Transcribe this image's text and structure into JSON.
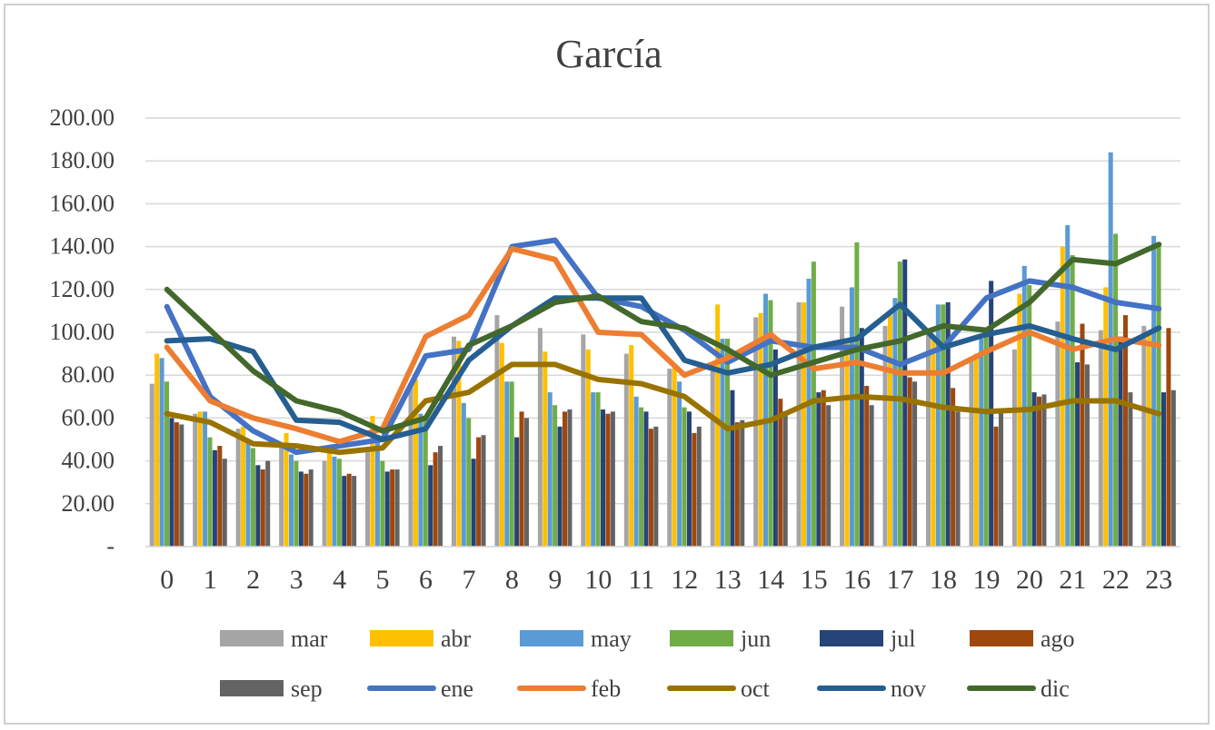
{
  "chart_data": {
    "type": "bar",
    "title": "García",
    "xlabel": "",
    "ylabel": "",
    "ylim": [
      0,
      200
    ],
    "yticks": [
      0,
      20,
      40,
      60,
      80,
      100,
      120,
      140,
      160,
      180,
      200
    ],
    "ytick_labels": [
      "-",
      "20.00",
      "40.00",
      "60.00",
      "80.00",
      "100.00",
      "120.00",
      "140.00",
      "160.00",
      "180.00",
      "200.00"
    ],
    "categories": [
      "0",
      "1",
      "2",
      "3",
      "4",
      "5",
      "6",
      "7",
      "8",
      "9",
      "10",
      "11",
      "12",
      "13",
      "14",
      "15",
      "16",
      "17",
      "18",
      "19",
      "20",
      "21",
      "22",
      "23"
    ],
    "legend_position": "bottom",
    "grid": true,
    "bar_series": [
      {
        "name": "mar",
        "color": "#a5a5a5",
        "values": [
          76,
          62,
          55,
          48,
          40,
          44,
          75,
          98,
          108,
          102,
          99,
          90,
          83,
          82,
          107,
          114,
          112,
          103,
          99,
          88,
          92,
          105,
          101,
          103
        ]
      },
      {
        "name": "abr",
        "color": "#ffc000",
        "values": [
          90,
          63,
          56,
          53,
          44,
          61,
          78,
          96,
          95,
          91,
          92,
          94,
          85,
          113,
          109,
          114,
          97,
          108,
          98,
          90,
          118,
          140,
          121,
          99
        ]
      },
      {
        "name": "may",
        "color": "#5b9bd5",
        "values": [
          88,
          63,
          49,
          43,
          42,
          52,
          62,
          67,
          77,
          72,
          72,
          70,
          77,
          97,
          118,
          125,
          121,
          116,
          113,
          97,
          131,
          150,
          184,
          145
        ]
      },
      {
        "name": "jun",
        "color": "#70ad47",
        "values": [
          77,
          51,
          46,
          40,
          41,
          40,
          61,
          60,
          77,
          66,
          72,
          65,
          65,
          97,
          115,
          133,
          142,
          133,
          113,
          98,
          122,
          136,
          146,
          142
        ]
      },
      {
        "name": "jul",
        "color": "#264478",
        "values": [
          60,
          45,
          38,
          35,
          33,
          35,
          38,
          41,
          51,
          56,
          64,
          63,
          63,
          73,
          92,
          72,
          102,
          134,
          114,
          124,
          72,
          86,
          98,
          72
        ]
      },
      {
        "name": "ago",
        "color": "#9e480e",
        "values": [
          58,
          47,
          36,
          34,
          34,
          36,
          44,
          51,
          63,
          63,
          62,
          55,
          53,
          58,
          69,
          73,
          75,
          79,
          74,
          56,
          70,
          104,
          108,
          102
        ]
      },
      {
        "name": "sep",
        "color": "#636363",
        "values": [
          57,
          41,
          40,
          36,
          33,
          36,
          47,
          52,
          60,
          64,
          63,
          56,
          56,
          59,
          63,
          66,
          66,
          77,
          63,
          64,
          71,
          85,
          72,
          73
        ]
      }
    ],
    "line_series": [
      {
        "name": "ene",
        "color": "#4472c4",
        "values": [
          112,
          70,
          54,
          44,
          47,
          50,
          89,
          92,
          140,
          143,
          116,
          112,
          101,
          86,
          96,
          93,
          93,
          85,
          93,
          116,
          124,
          121,
          114,
          111
        ]
      },
      {
        "name": "feb",
        "color": "#ed7d31",
        "values": [
          93,
          68,
          60,
          55,
          49,
          55,
          98,
          108,
          139,
          134,
          100,
          99,
          80,
          88,
          99,
          83,
          86,
          81,
          81,
          91,
          100,
          92,
          97,
          94
        ]
      },
      {
        "name": "oct",
        "color": "#997300",
        "values": [
          62,
          58,
          48,
          47,
          44,
          46,
          68,
          72,
          85,
          85,
          78,
          76,
          70,
          55,
          59,
          68,
          70,
          69,
          65,
          63,
          64,
          68,
          68,
          62
        ]
      },
      {
        "name": "nov",
        "color": "#255e91",
        "values": [
          96,
          97,
          91,
          59,
          58,
          50,
          55,
          87,
          103,
          116,
          116,
          116,
          87,
          81,
          85,
          93,
          97,
          113,
          93,
          99,
          103,
          97,
          92,
          102
        ]
      },
      {
        "name": "dic",
        "color": "#43682b",
        "values": [
          120,
          101,
          82,
          68,
          63,
          54,
          60,
          94,
          103,
          114,
          117,
          105,
          102,
          92,
          80,
          86,
          92,
          96,
          103,
          101,
          114,
          134,
          132,
          141
        ]
      }
    ],
    "legend_rows": [
      [
        "mar",
        "abr",
        "may",
        "jun",
        "jul",
        "ago"
      ],
      [
        "sep",
        "ene",
        "feb",
        "oct",
        "nov",
        "dic"
      ]
    ]
  }
}
